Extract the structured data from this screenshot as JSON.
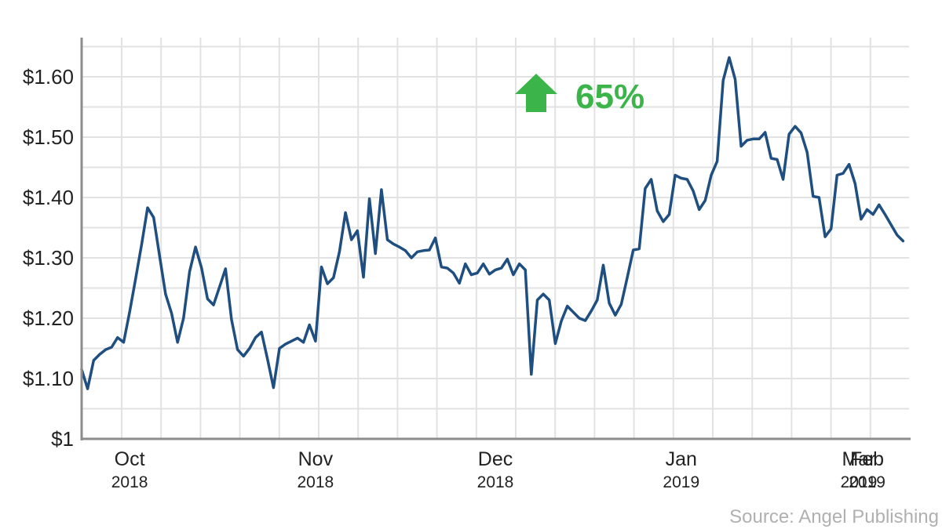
{
  "chart_data": {
    "type": "line",
    "title": "",
    "xlabel": "",
    "ylabel": "",
    "ylim": [
      1.0,
      1.665
    ],
    "xlim": [
      0,
      138
    ],
    "grid": true,
    "y_ticks": [
      {
        "value": 1.0,
        "label": "$1"
      },
      {
        "value": 1.1,
        "label": "$1.10"
      },
      {
        "value": 1.2,
        "label": "$1.20"
      },
      {
        "value": 1.3,
        "label": "$1.30"
      },
      {
        "value": 1.4,
        "label": "$1.40"
      },
      {
        "value": 1.5,
        "label": "$1.50"
      },
      {
        "value": 1.6,
        "label": "$1.60"
      }
    ],
    "x_ticks": [
      {
        "x": 8,
        "month": "Oct",
        "year": "2018"
      },
      {
        "x": 39,
        "month": "Nov",
        "year": "2018"
      },
      {
        "x": 69,
        "month": "Dec",
        "year": "2018"
      },
      {
        "x": 100,
        "month": "Jan",
        "year": "2019"
      },
      {
        "x": 131,
        "month": "Feb",
        "year": "2019"
      },
      {
        "x": 159,
        "month": "Mar",
        "year": "2019"
      }
    ],
    "series": [
      {
        "color": "#1f4e80",
        "points": [
          [
            0,
            1.115
          ],
          [
            1,
            1.083
          ],
          [
            2,
            1.13
          ],
          [
            3,
            1.14
          ],
          [
            4,
            1.148
          ],
          [
            5,
            1.152
          ],
          [
            6,
            1.168
          ],
          [
            7,
            1.16
          ],
          [
            8,
            1.21
          ],
          [
            9,
            1.265
          ],
          [
            10,
            1.322
          ],
          [
            11,
            1.383
          ],
          [
            12,
            1.367
          ],
          [
            13,
            1.303
          ],
          [
            14,
            1.24
          ],
          [
            15,
            1.208
          ],
          [
            16,
            1.16
          ],
          [
            17,
            1.2
          ],
          [
            18,
            1.277
          ],
          [
            19,
            1.318
          ],
          [
            20,
            1.283
          ],
          [
            21,
            1.232
          ],
          [
            22,
            1.222
          ],
          [
            23,
            1.252
          ],
          [
            24,
            1.282
          ],
          [
            25,
            1.198
          ],
          [
            26,
            1.148
          ],
          [
            27,
            1.137
          ],
          [
            28,
            1.15
          ],
          [
            29,
            1.168
          ],
          [
            30,
            1.177
          ],
          [
            31,
            1.132
          ],
          [
            32,
            1.085
          ],
          [
            33,
            1.15
          ],
          [
            34,
            1.157
          ],
          [
            35,
            1.162
          ],
          [
            36,
            1.167
          ],
          [
            37,
            1.16
          ],
          [
            38,
            1.189
          ],
          [
            39,
            1.162
          ],
          [
            40,
            1.285
          ],
          [
            41,
            1.257
          ],
          [
            42,
            1.267
          ],
          [
            43,
            1.31
          ],
          [
            44,
            1.375
          ],
          [
            45,
            1.33
          ],
          [
            46,
            1.345
          ],
          [
            47,
            1.268
          ],
          [
            48,
            1.398
          ],
          [
            49,
            1.307
          ],
          [
            50,
            1.413
          ],
          [
            51,
            1.33
          ],
          [
            52,
            1.323
          ],
          [
            53,
            1.318
          ],
          [
            54,
            1.312
          ],
          [
            55,
            1.3
          ],
          [
            56,
            1.31
          ],
          [
            57,
            1.312
          ],
          [
            58,
            1.313
          ],
          [
            59,
            1.333
          ],
          [
            60,
            1.285
          ],
          [
            61,
            1.283
          ],
          [
            62,
            1.275
          ],
          [
            63,
            1.258
          ],
          [
            64,
            1.29
          ],
          [
            65,
            1.272
          ],
          [
            66,
            1.275
          ],
          [
            67,
            1.29
          ],
          [
            68,
            1.273
          ],
          [
            69,
            1.28
          ],
          [
            70,
            1.283
          ],
          [
            71,
            1.298
          ],
          [
            72,
            1.272
          ],
          [
            73,
            1.29
          ],
          [
            74,
            1.28
          ],
          [
            75,
            1.107
          ],
          [
            76,
            1.23
          ],
          [
            77,
            1.24
          ],
          [
            78,
            1.23
          ],
          [
            79,
            1.158
          ],
          [
            80,
            1.195
          ],
          [
            81,
            1.22
          ],
          [
            82,
            1.21
          ],
          [
            83,
            1.2
          ],
          [
            84,
            1.196
          ],
          [
            85,
            1.212
          ],
          [
            86,
            1.23
          ],
          [
            87,
            1.288
          ],
          [
            88,
            1.225
          ],
          [
            89,
            1.205
          ],
          [
            90,
            1.223
          ],
          [
            91,
            1.267
          ],
          [
            92,
            1.313
          ],
          [
            93,
            1.315
          ],
          [
            94,
            1.415
          ],
          [
            95,
            1.43
          ],
          [
            96,
            1.378
          ],
          [
            97,
            1.36
          ],
          [
            98,
            1.372
          ],
          [
            99,
            1.437
          ],
          [
            100,
            1.432
          ],
          [
            101,
            1.43
          ],
          [
            102,
            1.411
          ],
          [
            103,
            1.38
          ],
          [
            104,
            1.395
          ],
          [
            105,
            1.437
          ],
          [
            106,
            1.46
          ],
          [
            107,
            1.594
          ],
          [
            108,
            1.632
          ],
          [
            109,
            1.596
          ],
          [
            110,
            1.485
          ],
          [
            111,
            1.495
          ],
          [
            112,
            1.497
          ],
          [
            113,
            1.497
          ],
          [
            114,
            1.508
          ],
          [
            115,
            1.465
          ],
          [
            116,
            1.463
          ],
          [
            117,
            1.43
          ],
          [
            118,
            1.505
          ],
          [
            119,
            1.518
          ],
          [
            120,
            1.507
          ],
          [
            121,
            1.475
          ],
          [
            122,
            1.402
          ],
          [
            123,
            1.4
          ],
          [
            124,
            1.335
          ],
          [
            125,
            1.348
          ],
          [
            126,
            1.437
          ],
          [
            127,
            1.44
          ],
          [
            128,
            1.455
          ],
          [
            129,
            1.423
          ],
          [
            130,
            1.364
          ],
          [
            131,
            1.38
          ],
          [
            132,
            1.372
          ],
          [
            133,
            1.388
          ],
          [
            134,
            1.372
          ],
          [
            135,
            1.355
          ],
          [
            136,
            1.338
          ],
          [
            137,
            1.328
          ]
        ]
      }
    ],
    "annotation": {
      "text": "65%",
      "color": "#3bb54a",
      "arrow": "up-arrow-icon"
    }
  },
  "source": "Source: Angel Publishing"
}
